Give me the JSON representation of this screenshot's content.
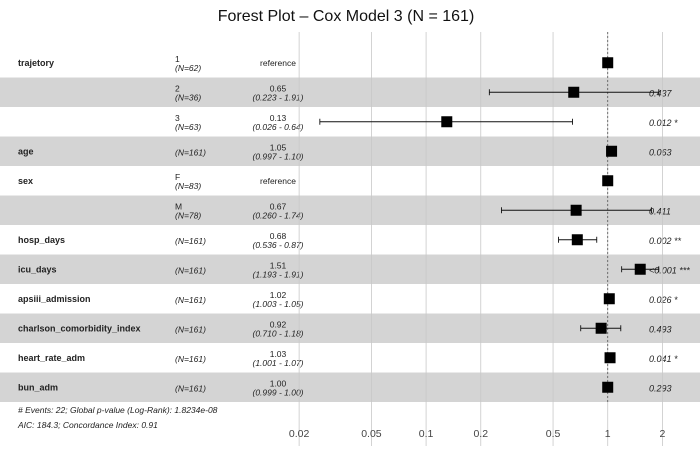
{
  "chart_data": {
    "type": "forest",
    "title": "Forest Plot – Cox Model 3 (N = 161)",
    "x_ticks": [
      0.02,
      0.05,
      0.1,
      0.2,
      0.5,
      1,
      2
    ],
    "x_tick_labels": [
      "0.02",
      "0.05",
      "0.1",
      "0.2",
      "0.5",
      "1",
      "2"
    ],
    "xlim": [
      0.014,
      2.5
    ],
    "x_scale": "log",
    "reference_line": 1,
    "rows": [
      {
        "variable": "trajetory",
        "level": "1",
        "n": "(N=62)",
        "estimate_text": "reference",
        "ci_text": "",
        "hr": 1.0,
        "lower": null,
        "upper": null,
        "p_text": "",
        "shaded": false
      },
      {
        "variable": "",
        "level": "2",
        "n": "(N=36)",
        "estimate_text": "0.65",
        "ci_text": "(0.223 - 1.91)",
        "hr": 0.65,
        "lower": 0.223,
        "upper": 1.91,
        "p_text": "0.437",
        "shaded": true
      },
      {
        "variable": "",
        "level": "3",
        "n": "(N=63)",
        "estimate_text": "0.13",
        "ci_text": "(0.026 - 0.64)",
        "hr": 0.13,
        "lower": 0.026,
        "upper": 0.64,
        "p_text": "0.012 *",
        "shaded": false
      },
      {
        "variable": "age",
        "level": "",
        "n": "(N=161)",
        "estimate_text": "1.05",
        "ci_text": "(0.997 - 1.10)",
        "hr": 1.05,
        "lower": 0.997,
        "upper": 1.1,
        "p_text": "0.063",
        "shaded": true
      },
      {
        "variable": "sex",
        "level": "F",
        "n": "(N=83)",
        "estimate_text": "reference",
        "ci_text": "",
        "hr": 1.0,
        "lower": null,
        "upper": null,
        "p_text": "",
        "shaded": false
      },
      {
        "variable": "",
        "level": "M",
        "n": "(N=78)",
        "estimate_text": "0.67",
        "ci_text": "(0.260 - 1.74)",
        "hr": 0.67,
        "lower": 0.26,
        "upper": 1.74,
        "p_text": "0.411",
        "shaded": true
      },
      {
        "variable": "hosp_days",
        "level": "",
        "n": "(N=161)",
        "estimate_text": "0.68",
        "ci_text": "(0.536 - 0.87)",
        "hr": 0.68,
        "lower": 0.536,
        "upper": 0.87,
        "p_text": "0.002 **",
        "shaded": false
      },
      {
        "variable": "icu_days",
        "level": "",
        "n": "(N=161)",
        "estimate_text": "1.51",
        "ci_text": "(1.193 - 1.91)",
        "hr": 1.51,
        "lower": 1.193,
        "upper": 1.91,
        "p_text": "<0.001 ***",
        "shaded": true
      },
      {
        "variable": "apsiii_admission",
        "level": "",
        "n": "(N=161)",
        "estimate_text": "1.02",
        "ci_text": "(1.003 - 1.05)",
        "hr": 1.02,
        "lower": 1.003,
        "upper": 1.05,
        "p_text": "0.026 *",
        "shaded": false
      },
      {
        "variable": "charlson_comorbidity_index",
        "level": "",
        "n": "(N=161)",
        "estimate_text": "0.92",
        "ci_text": "(0.710 - 1.18)",
        "hr": 0.92,
        "lower": 0.71,
        "upper": 1.18,
        "p_text": "0.493",
        "shaded": true
      },
      {
        "variable": "heart_rate_adm",
        "level": "",
        "n": "(N=161)",
        "estimate_text": "1.03",
        "ci_text": "(1.001 - 1.07)",
        "hr": 1.03,
        "lower": 1.001,
        "upper": 1.07,
        "p_text": "0.041 *",
        "shaded": false
      },
      {
        "variable": "bun_adm",
        "level": "",
        "n": "(N=161)",
        "estimate_text": "1.00",
        "ci_text": "(0.999 - 1.00)",
        "hr": 1.0,
        "lower": 0.999,
        "upper": 1.0,
        "p_text": "0.293",
        "shaded": true
      }
    ],
    "footnotes": [
      "# Events: 22; Global p-value (Log-Rank): 1.8234e-08",
      "AIC: 184.3; Concordance Index: 0.91"
    ],
    "colors": {
      "shade": "#d4d4d4",
      "marker": "#000000",
      "grid": "#c8c8c8"
    }
  }
}
